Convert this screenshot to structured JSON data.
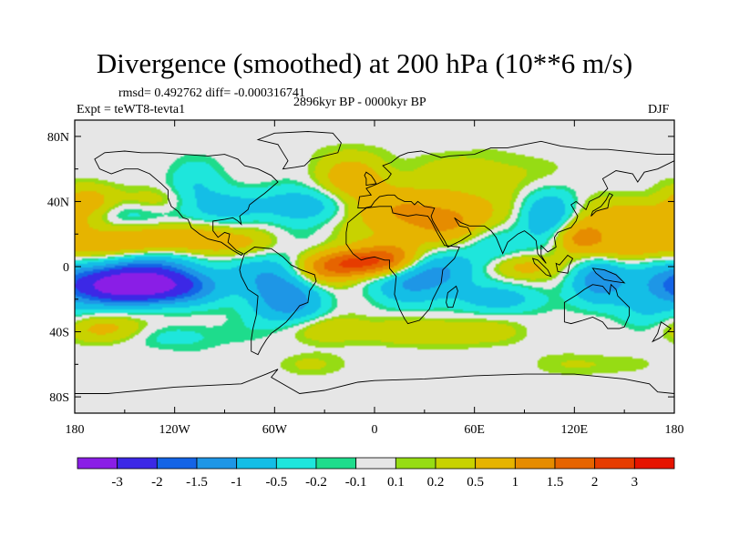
{
  "chart_data": {
    "type": "heatmap",
    "title": "Divergence (smoothed) at 200 hPa (10**6 m/s)",
    "stats_text": "rmsd= 0.492762 diff= -0.000316741",
    "period_text": "2896kyr BP - 0000kyr BP",
    "experiment_text": "Expt = teWT8-tevta1",
    "season": "DJF",
    "x_range": [
      -180,
      180
    ],
    "y_range": [
      -90,
      90
    ],
    "x_ticks": [
      {
        "value": -180,
        "label": "180"
      },
      {
        "value": -120,
        "label": "120W"
      },
      {
        "value": -60,
        "label": "60W"
      },
      {
        "value": 0,
        "label": "0"
      },
      {
        "value": 60,
        "label": "60E"
      },
      {
        "value": 120,
        "label": "120E"
      },
      {
        "value": 180,
        "label": "180"
      }
    ],
    "y_ticks": [
      {
        "value": 80,
        "label": "80N"
      },
      {
        "value": 40,
        "label": "40N"
      },
      {
        "value": 0,
        "label": "0"
      },
      {
        "value": -40,
        "label": "40S"
      },
      {
        "value": -80,
        "label": "80S"
      }
    ],
    "colorbar": {
      "colors": [
        "#8a1ee6",
        "#3c28e6",
        "#1464e6",
        "#1e96e6",
        "#14bee6",
        "#1ee6dc",
        "#1edc8c",
        "#e6e6e6",
        "#96dc14",
        "#c8d200",
        "#e6b400",
        "#e68c00",
        "#e66400",
        "#e63c00",
        "#e61400"
      ],
      "labels": [
        "-3",
        "-2",
        "-1.5",
        "-1",
        "-0.5",
        "-0.2",
        "-0.1",
        "0.1",
        "0.2",
        "0.5",
        "1",
        "1.5",
        "2",
        "3"
      ]
    },
    "features": [
      {
        "lon": -142,
        "lat": -12,
        "sx": 26,
        "sy": 7,
        "v": -3.4
      },
      {
        "lon": -150,
        "lat": -6,
        "sx": 30,
        "sy": 10,
        "v": -1.3
      },
      {
        "lon": -115,
        "lat": 6,
        "sx": 36,
        "sy": 7,
        "v": -0.8
      },
      {
        "lon": -150,
        "lat": 12,
        "sx": 35,
        "sy": 8,
        "v": 1.3
      },
      {
        "lon": -150,
        "lat": 32,
        "sx": 22,
        "sy": 6,
        "v": -0.5
      },
      {
        "lon": -172,
        "lat": 40,
        "sx": 12,
        "sy": 8,
        "v": 0.6
      },
      {
        "lon": -132,
        "lat": 40,
        "sx": 14,
        "sy": 6,
        "v": 0.5
      },
      {
        "lon": -108,
        "lat": 47,
        "sx": 12,
        "sy": 12,
        "v": -0.5
      },
      {
        "lon": -90,
        "lat": 35,
        "sx": 14,
        "sy": 8,
        "v": -0.6
      },
      {
        "lon": -80,
        "lat": 10,
        "sx": 20,
        "sy": 8,
        "v": 0.7
      },
      {
        "lon": -105,
        "lat": 18,
        "sx": 14,
        "sy": 8,
        "v": 0.6
      },
      {
        "lon": -58,
        "lat": -10,
        "sx": 16,
        "sy": 12,
        "v": -1.2
      },
      {
        "lon": -50,
        "lat": -25,
        "sx": 15,
        "sy": 8,
        "v": -0.7
      },
      {
        "lon": -32,
        "lat": -5,
        "sx": 14,
        "sy": 6,
        "v": 0.7
      },
      {
        "lon": -40,
        "lat": 38,
        "sx": 20,
        "sy": 8,
        "v": -1.0
      },
      {
        "lon": -15,
        "lat": 52,
        "sx": 15,
        "sy": 12,
        "v": 0.8
      },
      {
        "lon": -12,
        "lat": 2,
        "sx": 18,
        "sy": 6,
        "v": 2.2
      },
      {
        "lon": 12,
        "lat": 6,
        "sx": 14,
        "sy": 8,
        "v": 1.3
      },
      {
        "lon": 25,
        "lat": -5,
        "sx": 20,
        "sy": 10,
        "v": -1.5
      },
      {
        "lon": 10,
        "lat": 35,
        "sx": 25,
        "sy": 10,
        "v": 0.6
      },
      {
        "lon": 45,
        "lat": 28,
        "sx": 25,
        "sy": 10,
        "v": 1.0
      },
      {
        "lon": 60,
        "lat": 55,
        "sx": 30,
        "sy": 10,
        "v": 0.4
      },
      {
        "lon": 70,
        "lat": 10,
        "sx": 14,
        "sy": 12,
        "v": -0.6
      },
      {
        "lon": 75,
        "lat": -20,
        "sx": 25,
        "sy": 6,
        "v": -0.6
      },
      {
        "lon": 95,
        "lat": 0,
        "sx": 20,
        "sy": 6,
        "v": 0.8
      },
      {
        "lon": 105,
        "lat": 28,
        "sx": 12,
        "sy": 12,
        "v": -1.2
      },
      {
        "lon": 122,
        "lat": 18,
        "sx": 12,
        "sy": 8,
        "v": 1.3
      },
      {
        "lon": 135,
        "lat": -5,
        "sx": 12,
        "sy": 10,
        "v": -1.5
      },
      {
        "lon": 145,
        "lat": 10,
        "sx": 14,
        "sy": 8,
        "v": 0.7
      },
      {
        "lon": 160,
        "lat": 30,
        "sx": 25,
        "sy": 8,
        "v": 0.8
      },
      {
        "lon": 165,
        "lat": -25,
        "sx": 14,
        "sy": 10,
        "v": -0.6
      },
      {
        "lon": -160,
        "lat": -38,
        "sx": 25,
        "sy": 6,
        "v": 0.6
      },
      {
        "lon": -25,
        "lat": -38,
        "sx": 15,
        "sy": 6,
        "v": 0.5
      },
      {
        "lon": -120,
        "lat": -42,
        "sx": 22,
        "sy": 6,
        "v": -0.4
      },
      {
        "lon": 40,
        "lat": -40,
        "sx": 30,
        "sy": 6,
        "v": 0.5
      },
      {
        "lon": -40,
        "lat": -60,
        "sx": 12,
        "sy": 5,
        "v": 0.3
      },
      {
        "lon": 130,
        "lat": -60,
        "sx": 20,
        "sy": 5,
        "v": 0.25
      }
    ]
  }
}
